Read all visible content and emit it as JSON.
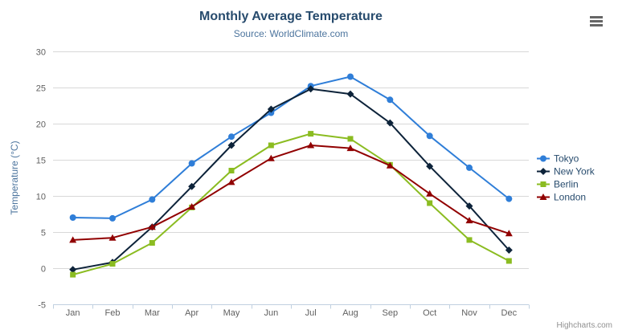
{
  "chart_data": {
    "type": "line",
    "title": "Monthly Average Temperature",
    "subtitle": "Source: WorldClimate.com",
    "xlabel": "",
    "ylabel": "Temperature (°C)",
    "ylim": [
      -5,
      30
    ],
    "ytick_interval": 5,
    "grid": true,
    "legend_position": "right",
    "credits": "Highcharts.com",
    "categories": [
      "Jan",
      "Feb",
      "Mar",
      "Apr",
      "May",
      "Jun",
      "Jul",
      "Aug",
      "Sep",
      "Oct",
      "Nov",
      "Dec"
    ],
    "series": [
      {
        "name": "Tokyo",
        "color": "#2f7ed8",
        "marker": "circle",
        "values": [
          7.0,
          6.9,
          9.5,
          14.5,
          18.2,
          21.5,
          25.2,
          26.5,
          23.3,
          18.3,
          13.9,
          9.6
        ]
      },
      {
        "name": "New York",
        "color": "#0d233a",
        "marker": "diamond",
        "values": [
          -0.2,
          0.8,
          5.7,
          11.3,
          17.0,
          22.0,
          24.8,
          24.1,
          20.1,
          14.1,
          8.6,
          2.5
        ]
      },
      {
        "name": "Berlin",
        "color": "#8bbc21",
        "marker": "square",
        "values": [
          -0.9,
          0.6,
          3.5,
          8.4,
          13.5,
          17.0,
          18.6,
          17.9,
          14.3,
          9.0,
          3.9,
          1.0
        ]
      },
      {
        "name": "London",
        "color": "#910000",
        "marker": "triangle",
        "values": [
          3.9,
          4.2,
          5.7,
          8.5,
          11.9,
          15.2,
          17.0,
          16.6,
          14.2,
          10.3,
          6.6,
          4.8
        ]
      }
    ],
    "colors": {
      "title": "#274b6d",
      "subtitle": "#4d759e",
      "axis_label": "#606060",
      "axis_title": "#4d759e",
      "gridline": "#d8d8d8",
      "axis_line": "#c0d0e0",
      "legend_text": "#274b6d",
      "credits_text": "#909090"
    }
  }
}
